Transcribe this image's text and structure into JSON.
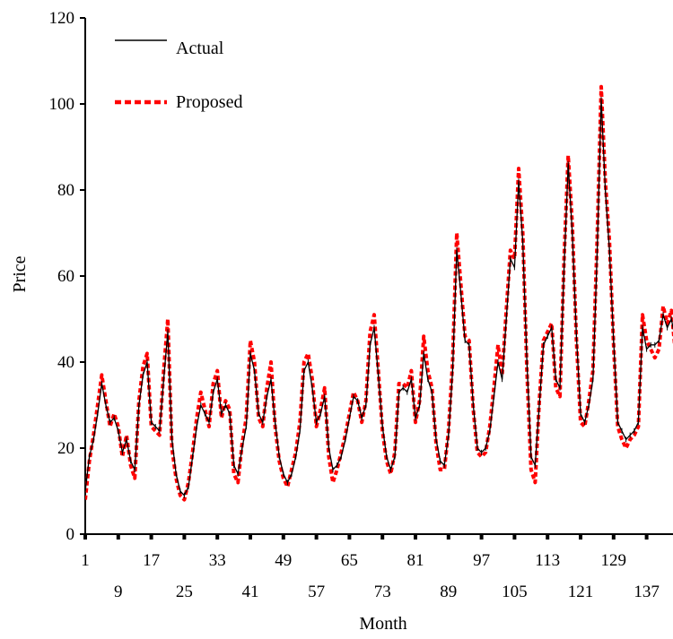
{
  "chart_data": {
    "type": "line",
    "title": "",
    "xlabel": "Month",
    "ylabel": "Price",
    "ylim": [
      0,
      120
    ],
    "xlim": [
      1,
      144
    ],
    "grid": false,
    "legend_placement": "top-left",
    "y_ticks": [
      "0",
      "20",
      "40",
      "60",
      "80",
      "100",
      "120"
    ],
    "x_ticks_upper": [
      "1",
      "17",
      "33",
      "49",
      "65",
      "81",
      "97",
      "113",
      "129"
    ],
    "x_ticks_lower": [
      "9",
      "25",
      "41",
      "57",
      "73",
      "89",
      "105",
      "121",
      "137"
    ],
    "series": [
      {
        "name": "Actual",
        "color": "#000000",
        "style": "solid",
        "x": [
          1,
          2,
          3,
          4,
          5,
          6,
          7,
          8,
          9,
          10,
          11,
          12,
          13,
          14,
          15,
          16,
          17,
          18,
          19,
          20,
          21,
          22,
          23,
          24,
          25,
          26,
          27,
          28,
          29,
          30,
          31,
          32,
          33,
          34,
          35,
          36,
          37,
          38,
          39,
          40,
          41,
          42,
          43,
          44,
          45,
          46,
          47,
          48,
          49,
          50,
          51,
          52,
          53,
          54,
          55,
          56,
          57,
          58,
          59,
          60,
          61,
          62,
          63,
          64,
          65,
          66,
          67,
          68,
          69,
          70,
          71,
          72,
          73,
          74,
          75,
          76,
          77,
          78,
          79,
          80,
          81,
          82,
          83,
          84,
          85,
          86,
          87,
          88,
          89,
          90,
          91,
          92,
          93,
          94,
          95,
          96,
          97,
          98,
          99,
          100,
          101,
          102,
          103,
          104,
          105,
          106,
          107,
          108,
          109,
          110,
          111,
          112,
          113,
          114,
          115,
          116,
          117,
          118,
          119,
          120,
          121,
          122,
          123,
          124,
          125,
          126,
          127,
          128,
          129,
          130,
          131,
          132,
          133,
          134,
          135,
          136,
          137,
          138,
          139,
          140,
          141,
          142,
          143,
          144
        ],
        "values": [
          10,
          18,
          22,
          28,
          35,
          30,
          26,
          27,
          24,
          19,
          22,
          17,
          15,
          30,
          37,
          40,
          26,
          25,
          24,
          36,
          47,
          22,
          14,
          10,
          9,
          11,
          18,
          25,
          30,
          28,
          26,
          33,
          36,
          28,
          30,
          28,
          16,
          14,
          20,
          25,
          42,
          38,
          28,
          26,
          32,
          36,
          26,
          18,
          14,
          12,
          14,
          18,
          24,
          38,
          40,
          34,
          26,
          28,
          32,
          20,
          15,
          16,
          18,
          22,
          27,
          32,
          31,
          27,
          30,
          44,
          48,
          37,
          25,
          18,
          15,
          18,
          33,
          34,
          33,
          36,
          27,
          30,
          42,
          36,
          33,
          22,
          17,
          16,
          23,
          38,
          66,
          56,
          45,
          44,
          30,
          20,
          19,
          20,
          24,
          32,
          40,
          36,
          50,
          64,
          62,
          82,
          68,
          40,
          18,
          16,
          30,
          44,
          46,
          48,
          36,
          34,
          62,
          86,
          70,
          46,
          28,
          26,
          30,
          36,
          65,
          101,
          80,
          66,
          45,
          26,
          24,
          22,
          23,
          24,
          26,
          48,
          43,
          44,
          44,
          45,
          51,
          48,
          50,
          45
        ]
      },
      {
        "name": "Proposed",
        "color": "#ff0000",
        "style": "dashed",
        "x": [
          1,
          2,
          3,
          4,
          5,
          6,
          7,
          8,
          9,
          10,
          11,
          12,
          13,
          14,
          15,
          16,
          17,
          18,
          19,
          20,
          21,
          22,
          23,
          24,
          25,
          26,
          27,
          28,
          29,
          30,
          31,
          32,
          33,
          34,
          35,
          36,
          37,
          38,
          39,
          40,
          41,
          42,
          43,
          44,
          45,
          46,
          47,
          48,
          49,
          50,
          51,
          52,
          53,
          54,
          55,
          56,
          57,
          58,
          59,
          60,
          61,
          62,
          63,
          64,
          65,
          66,
          67,
          68,
          69,
          70,
          71,
          72,
          73,
          74,
          75,
          76,
          77,
          78,
          79,
          80,
          81,
          82,
          83,
          84,
          85,
          86,
          87,
          88,
          89,
          90,
          91,
          92,
          93,
          94,
          95,
          96,
          97,
          98,
          99,
          100,
          101,
          102,
          103,
          104,
          105,
          106,
          107,
          108,
          109,
          110,
          111,
          112,
          113,
          114,
          115,
          116,
          117,
          118,
          119,
          120,
          121,
          122,
          123,
          124,
          125,
          126,
          127,
          128,
          129,
          130,
          131,
          132,
          133,
          134,
          135,
          136,
          137,
          138,
          139,
          140,
          141,
          142,
          143,
          144
        ],
        "values": [
          8,
          17,
          23,
          30,
          37,
          31,
          25,
          28,
          25,
          18,
          23,
          16,
          13,
          31,
          39,
          42,
          25,
          24,
          23,
          38,
          50,
          20,
          13,
          9,
          8,
          12,
          19,
          27,
          33,
          29,
          25,
          35,
          38,
          27,
          31,
          29,
          14,
          12,
          21,
          27,
          45,
          40,
          27,
          25,
          34,
          40,
          25,
          17,
          13,
          11,
          15,
          19,
          26,
          40,
          42,
          36,
          25,
          29,
          34,
          18,
          12,
          15,
          19,
          23,
          28,
          33,
          31,
          26,
          31,
          47,
          51,
          38,
          24,
          17,
          14,
          19,
          35,
          35,
          34,
          38,
          26,
          31,
          46,
          38,
          34,
          21,
          15,
          15,
          24,
          40,
          70,
          58,
          46,
          45,
          29,
          19,
          18,
          19,
          25,
          34,
          44,
          37,
          52,
          66,
          64,
          85,
          70,
          38,
          15,
          12,
          31,
          45,
          47,
          49,
          34,
          32,
          64,
          88,
          72,
          45,
          26,
          25,
          31,
          38,
          68,
          104,
          82,
          68,
          44,
          25,
          22,
          20,
          22,
          23,
          25,
          51,
          45,
          43,
          41,
          43,
          53,
          49,
          52,
          42
        ]
      }
    ]
  }
}
